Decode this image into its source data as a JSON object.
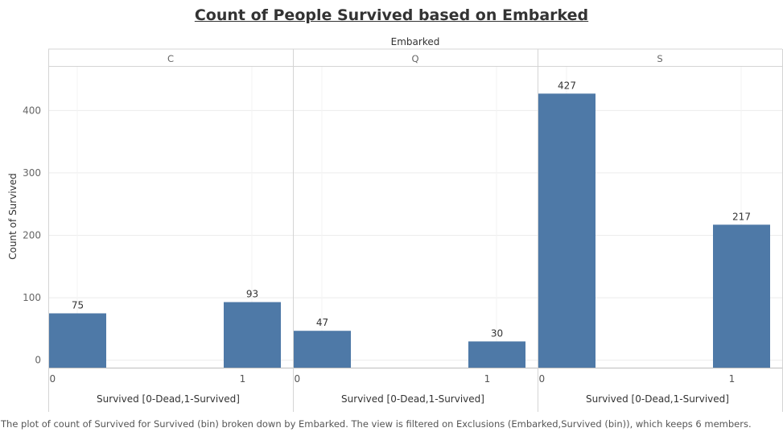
{
  "chart_data": {
    "type": "bar",
    "title": "Count of People Survived based on Embarked",
    "facet_label": "Embarked",
    "facets": [
      "C",
      "Q",
      "S"
    ],
    "categories": [
      "0",
      "1"
    ],
    "values": [
      [
        75,
        93
      ],
      [
        47,
        30
      ],
      [
        427,
        217
      ]
    ],
    "data_labels": [
      [
        "75",
        "93"
      ],
      [
        "47",
        "30"
      ],
      [
        "427",
        "217"
      ]
    ],
    "xlabel": "Survived [0-Dead,1-Survived]",
    "ylabel": "Count of Survived",
    "yticks": [
      0,
      100,
      200,
      300,
      400
    ],
    "ylim": [
      -12,
      470
    ],
    "grid": true,
    "bar_color": "#4e79a7",
    "footer": "The plot of count of Survived for Survived (bin) broken down by Embarked. The view is filtered on Exclusions (Embarked,Survived (bin)), which keeps 6 members."
  }
}
